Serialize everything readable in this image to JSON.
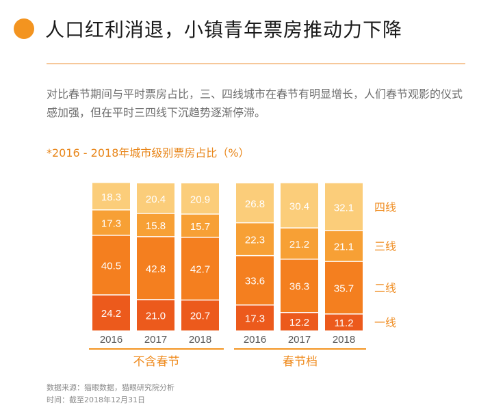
{
  "header": {
    "title": "人口红利消退，小镇青年票房推动力下降",
    "description": "对比春节期间与平时票房占比，三、四线城市在春节有明显增长，人们春节观影的仪式感加强，但在平时三四线下沉趋势逐渐停滞。"
  },
  "chart_data": {
    "type": "bar",
    "stacked": true,
    "title": "*2016 - 2018年城市级别票房占比（%）",
    "groups": [
      {
        "label": "不含春节",
        "categories": [
          "2016",
          "2017",
          "2018"
        ]
      },
      {
        "label": "春节档",
        "categories": [
          "2016",
          "2017",
          "2018"
        ]
      }
    ],
    "categories": [
      "2016",
      "2017",
      "2018",
      "2016",
      "2017",
      "2018"
    ],
    "series": [
      {
        "name": "一线",
        "values": [
          24.2,
          21.0,
          20.7,
          17.3,
          12.2,
          11.2
        ]
      },
      {
        "name": "二线",
        "values": [
          40.5,
          42.8,
          42.7,
          33.6,
          36.3,
          35.7
        ]
      },
      {
        "name": "三线",
        "values": [
          17.3,
          15.8,
          15.7,
          22.3,
          21.2,
          21.1
        ]
      },
      {
        "name": "四线",
        "values": [
          18.3,
          20.4,
          20.9,
          26.8,
          30.4,
          32.1
        ]
      }
    ],
    "ylim": [
      0,
      100
    ]
  },
  "footer": {
    "source": "数据来源：猫眼数据，猫眼研究院分析",
    "time": "时间：截至2018年12月31日"
  },
  "colors": {
    "accent": "#f39420",
    "divider": "#f6c89a",
    "chart_title": "#e8861a",
    "bar_text": "#ffffff",
    "legend_text": "#ef8a1c",
    "tick_text": "#555555",
    "series": [
      "#ec5a1c",
      "#f47f1f",
      "#f7a035",
      "#fbcd7a"
    ]
  }
}
